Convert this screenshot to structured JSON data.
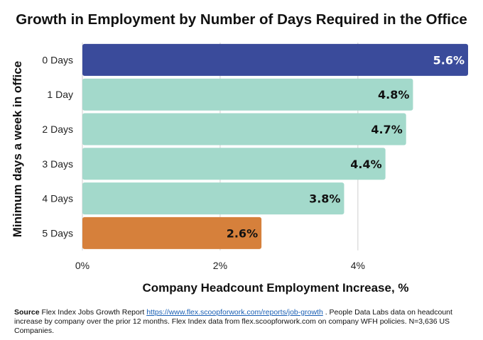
{
  "chart_data": {
    "type": "bar",
    "orientation": "horizontal",
    "title": "Growth in Employment by Number of Days Required in the Office",
    "xlabel": "Company Headcount Employment Increase, %",
    "ylabel": "Minimum days a week in office",
    "categories": [
      "0 Days",
      "1 Day",
      "2 Days",
      "3 Days",
      "4 Days",
      "5 Days"
    ],
    "values": [
      5.6,
      4.8,
      4.7,
      4.4,
      3.8,
      2.6
    ],
    "value_labels": [
      "5.6%",
      "4.8%",
      "4.7%",
      "4.4%",
      "3.8%",
      "2.6%"
    ],
    "bar_colors": [
      "#3a4b9b",
      "#a3d9cb",
      "#a3d9cb",
      "#a3d9cb",
      "#a3d9cb",
      "#d6803b"
    ],
    "label_colors": [
      "#ffffff",
      "#111111",
      "#111111",
      "#111111",
      "#111111",
      "#111111"
    ],
    "xlim": [
      0,
      5.6
    ],
    "xticks": [
      0,
      2,
      4
    ],
    "xtick_labels": [
      "0%",
      "2%",
      "4%"
    ],
    "grid": true,
    "legend": "none"
  },
  "source": {
    "label": "Source",
    "text1": " Flex Index Jobs Growth Report ",
    "link": "https://www.flex.scoopforwork.com/reports/job-growth",
    "text2": " . People Data Labs data on headcount increase by company over the prior 12 months. Flex Index data from flex.scoopforwork.com on company WFH policies. N=3,636 US Companies."
  }
}
